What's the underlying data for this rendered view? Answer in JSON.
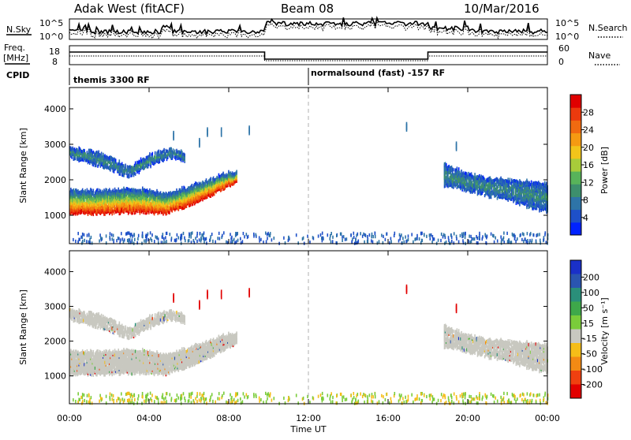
{
  "header": {
    "station": "Adak West (fitACF)",
    "beam": "Beam 08",
    "date": "10/Mar/2016"
  },
  "top_panel": {
    "left_label": "N.Sky",
    "right_label": "N.Search",
    "left_ticks": [
      "10^5",
      "10^0"
    ],
    "right_ticks": [
      "10^5",
      "10^0"
    ]
  },
  "freq_panel": {
    "left_label_line1": "Freq.",
    "left_label_line2": "[MHz]",
    "right_label": "Nave",
    "left_ticks": [
      "18",
      "8"
    ],
    "right_ticks": [
      "60",
      "0"
    ]
  },
  "cpid": {
    "label": "CPID",
    "segments": [
      {
        "start_hour": 0,
        "text": "themis 3300 RF"
      },
      {
        "start_hour": 12,
        "text": "normalsound (fast) -157 RF"
      }
    ]
  },
  "colors": {
    "power_scale": [
      "#0022ff",
      "#1e50c8",
      "#2e74a8",
      "#3d8f6d",
      "#58b35a",
      "#a8cc3a",
      "#f2c41a",
      "#f59a12",
      "#f06a10",
      "#ec3a0e",
      "#e00000"
    ],
    "velocity_scale": [
      "#e20000",
      "#f04010",
      "#f38a14",
      "#f5bd18",
      "#c8c8c0",
      "#7acc3a",
      "#3ea84a",
      "#2a8f7a",
      "#2a55b0",
      "#1a30c8"
    ],
    "velocity_gray": "#c8c8c0"
  },
  "chart_data": [
    {
      "type": "heatmap",
      "name": "power",
      "xlim": [
        0,
        24
      ],
      "ylim": [
        200,
        4600
      ],
      "ylabel": "Slant Range [km]",
      "colorbar": {
        "label": "Power [dB]",
        "range": [
          0,
          32
        ],
        "ticks": [
          4,
          8,
          12,
          16,
          20,
          24,
          28
        ]
      },
      "bands": [
        {
          "x": [
            0,
            2,
            3.5,
            4.8,
            6,
            7,
            8,
            8.4
          ],
          "lower": [
            1100,
            1120,
            1150,
            1100,
            1350,
            1600,
            1900,
            2000
          ],
          "upper": [
            1750,
            1750,
            1800,
            1650,
            1850,
            2050,
            2250,
            2250
          ]
        },
        {
          "x": [
            0,
            1.5,
            3,
            4,
            5,
            5.8
          ],
          "lower": [
            2700,
            2450,
            2150,
            2450,
            2700,
            2600
          ],
          "upper": [
            2950,
            2800,
            2400,
            2750,
            2900,
            2800
          ]
        },
        {
          "x": [
            18.8,
            20,
            21,
            22,
            23,
            24
          ],
          "lower": [
            1900,
            1750,
            1600,
            1500,
            1300,
            1150
          ],
          "upper": [
            2500,
            2200,
            2100,
            2050,
            2000,
            1950
          ]
        }
      ]
    },
    {
      "type": "heatmap",
      "name": "velocity",
      "xlim": [
        0,
        24
      ],
      "ylim": [
        200,
        4600
      ],
      "ylabel": "Slant Range [km]",
      "xlabel": "Time UT",
      "colorbar": {
        "label": "Velocity [m s⁻¹]",
        "ticks": [
          "200",
          "100",
          "50",
          "15",
          "-15",
          "-50",
          "-100",
          "-200"
        ]
      }
    }
  ],
  "axes": {
    "x_ticks": [
      "00:00",
      "04:00",
      "08:00",
      "12:00",
      "16:00",
      "20:00",
      "00:00"
    ],
    "y_ticks": [
      "1000",
      "2000",
      "3000",
      "4000"
    ]
  }
}
